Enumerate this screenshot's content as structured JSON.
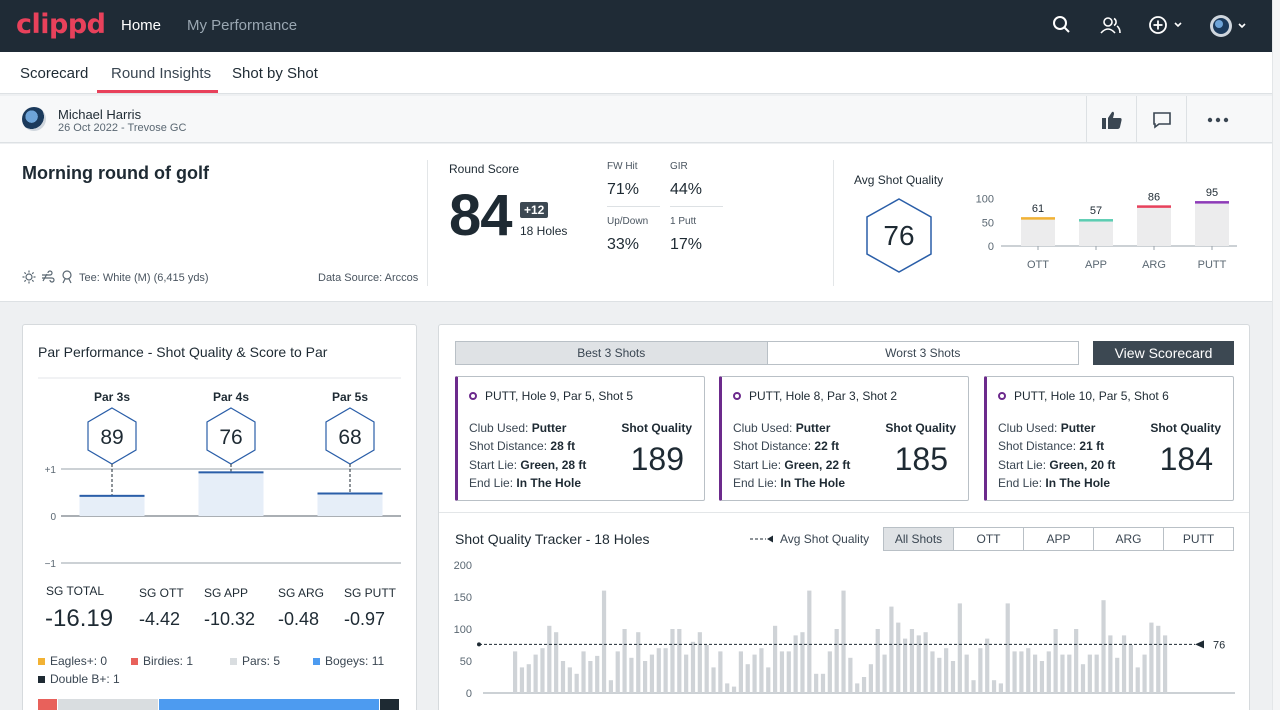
{
  "app": {
    "logo": "clippd"
  },
  "nav": {
    "home": "Home",
    "performance": "My Performance"
  },
  "icons": {
    "search": "search-icon",
    "people": "people-icon",
    "add": "add-circle-icon",
    "avatar": "user-avatar"
  },
  "tabs": [
    "Scorecard",
    "Round Insights",
    "Shot by Shot"
  ],
  "user": {
    "name": "Michael Harris",
    "date_course": "26 Oct 2022 - Trevose GC"
  },
  "round": {
    "title": "Morning round of golf",
    "tee": "Tee: White (M) (6,415 yds)",
    "data_source": "Data Source: Arccos",
    "score_label": "Round Score",
    "score": "84",
    "to_par": "+12",
    "holes": "18 Holes",
    "stats": [
      {
        "label": "FW Hit",
        "value": "71%"
      },
      {
        "label": "GIR",
        "value": "44%"
      },
      {
        "label": "Up/Down",
        "value": "33%"
      },
      {
        "label": "1 Putt",
        "value": "17%"
      }
    ],
    "avg_label": "Avg Shot Quality",
    "avg_value": "76"
  },
  "chart_data": [
    {
      "type": "bar",
      "categories": [
        "OTT",
        "APP",
        "ARG",
        "PUTT"
      ],
      "values": [
        61,
        57,
        86,
        95
      ],
      "bar_colors": [
        "#f2b234",
        "#5ccdb2",
        "#e8415b",
        "#8e3bb8"
      ],
      "yticks": [
        0,
        50,
        100
      ],
      "ylim": [
        0,
        110
      ]
    },
    {
      "type": "bar",
      "title": "Par Performance - Shot Quality & Score to Par",
      "categories": [
        "Par 3s",
        "Par 4s",
        "Par 5s"
      ],
      "shot_quality": [
        89,
        76,
        68
      ],
      "score_to_par": [
        0.45,
        0.95,
        0.5
      ],
      "yticks": [
        "+1",
        "0",
        "−1"
      ],
      "ylim": [
        -1,
        1
      ]
    },
    {
      "type": "bar",
      "title": "Shot Quality Tracker - 18 Holes",
      "legend": "Avg Shot Quality",
      "avg_value": 76,
      "avg_label": "76",
      "yticks": [
        0,
        50,
        100,
        150,
        200
      ],
      "ylim": [
        0,
        200
      ],
      "values": [
        65,
        40,
        45,
        60,
        70,
        105,
        95,
        50,
        40,
        30,
        65,
        50,
        58,
        160,
        20,
        65,
        100,
        55,
        95,
        50,
        60,
        70,
        70,
        100,
        100,
        60,
        80,
        95,
        75,
        40,
        65,
        15,
        10,
        65,
        45,
        60,
        70,
        40,
        105,
        65,
        65,
        90,
        95,
        160,
        30,
        30,
        65,
        100,
        160,
        55,
        15,
        25,
        45,
        100,
        60,
        135,
        110,
        85,
        100,
        90,
        95,
        65,
        55,
        70,
        50,
        140,
        60,
        20,
        70,
        85,
        20,
        15,
        140,
        65,
        65,
        70,
        60,
        50,
        65,
        100,
        60,
        60,
        100,
        45,
        60,
        60,
        145,
        90,
        55,
        90,
        75,
        40,
        60,
        110,
        105,
        90
      ]
    }
  ],
  "shots": {
    "best_tab": "Best 3 Shots",
    "worst_tab": "Worst 3 Shots",
    "view_button": "View Scorecard",
    "club_label": "Club Used:",
    "distance_label": "Shot Distance:",
    "start_label": "Start Lie:",
    "end_label": "End Lie:",
    "quality_label": "Shot Quality",
    "items": [
      {
        "title": "PUTT, Hole 9, Par 5, Shot 5",
        "club": "Putter",
        "distance": "28 ft",
        "start": "Green, 28 ft",
        "end": "In The Hole",
        "quality": "189"
      },
      {
        "title": "PUTT, Hole 8, Par 3, Shot 2",
        "club": "Putter",
        "distance": "22 ft",
        "start": "Green, 22 ft",
        "end": "In The Hole",
        "quality": "185"
      },
      {
        "title": "PUTT, Hole 10, Par 5, Shot 6",
        "club": "Putter",
        "distance": "21 ft",
        "start": "Green, 20 ft",
        "end": "In The Hole",
        "quality": "184"
      }
    ]
  },
  "tracker": {
    "filters": [
      "All Shots",
      "OTT",
      "APP",
      "ARG",
      "PUTT"
    ]
  },
  "sg": {
    "total_label": "SG TOTAL",
    "total": "-16.19",
    "items": [
      {
        "label": "SG OTT",
        "value": "-4.42"
      },
      {
        "label": "SG APP",
        "value": "-10.32"
      },
      {
        "label": "SG ARG",
        "value": "-0.48"
      },
      {
        "label": "SG PUTT",
        "value": "-0.97"
      }
    ]
  },
  "score_counts": [
    {
      "label": "Eagles+: 0",
      "color": "#f2b234",
      "count": 0
    },
    {
      "label": "Birdies: 1",
      "color": "#e8615b",
      "count": 1
    },
    {
      "label": "Pars: 5",
      "color": "#d9dde0",
      "count": 5
    },
    {
      "label": "Bogeys: 11",
      "color": "#4d9bf0",
      "count": 11
    },
    {
      "label": "Double B+: 1",
      "color": "#1e2a33",
      "count": 1
    }
  ]
}
